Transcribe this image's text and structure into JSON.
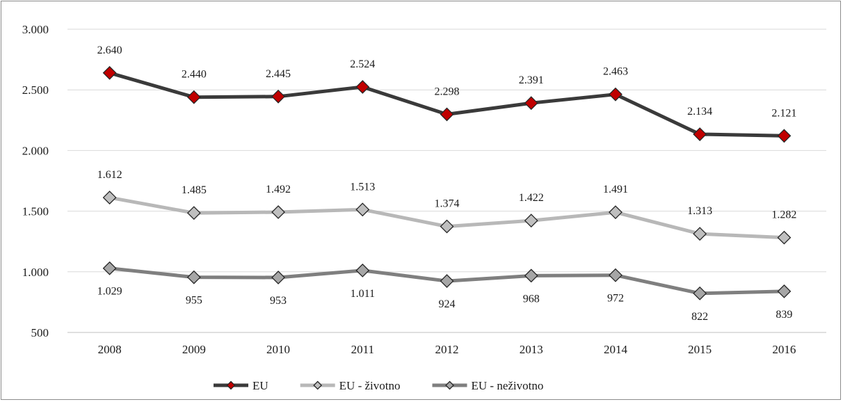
{
  "chart_data": {
    "type": "line",
    "title": "",
    "xlabel": "",
    "ylabel": "",
    "categories": [
      "2008",
      "2009",
      "2010",
      "2011",
      "2012",
      "2013",
      "2014",
      "2015",
      "2016"
    ],
    "ylim": [
      500,
      3000
    ],
    "y_ticks": [
      500,
      1000,
      1500,
      2000,
      2500,
      3000
    ],
    "y_tick_labels": [
      "500",
      "1.000",
      "1.500",
      "2.000",
      "2.500",
      "3.000"
    ],
    "grid": "horizontal",
    "legend_position": "bottom",
    "series": [
      {
        "name": "EU",
        "values": [
          2640,
          2440,
          2445,
          2524,
          2298,
          2391,
          2463,
          2134,
          2121
        ],
        "labels": [
          "2.640",
          "2.440",
          "2.445",
          "2.524",
          "2.298",
          "2.391",
          "2.463",
          "2.134",
          "2.121"
        ],
        "label_position": "above",
        "line_color": "#3a3a3a",
        "marker_color": "#c00000"
      },
      {
        "name": "EU - životno",
        "values": [
          1612,
          1485,
          1492,
          1513,
          1374,
          1422,
          1491,
          1313,
          1282
        ],
        "labels": [
          "1.612",
          "1.485",
          "1.492",
          "1.513",
          "1.374",
          "1.422",
          "1.491",
          "1.313",
          "1.282"
        ],
        "label_position": "above",
        "line_color": "#b8b8b8",
        "marker_color": "#bfbfbf"
      },
      {
        "name": "EU - neživotno",
        "values": [
          1029,
          955,
          953,
          1011,
          924,
          968,
          972,
          822,
          839
        ],
        "labels": [
          "1.029",
          "955",
          "953",
          "1.011",
          "924",
          "968",
          "972",
          "822",
          "839"
        ],
        "label_position": "below",
        "line_color": "#7f7f7f",
        "marker_color": "#a6a6a6"
      }
    ]
  }
}
